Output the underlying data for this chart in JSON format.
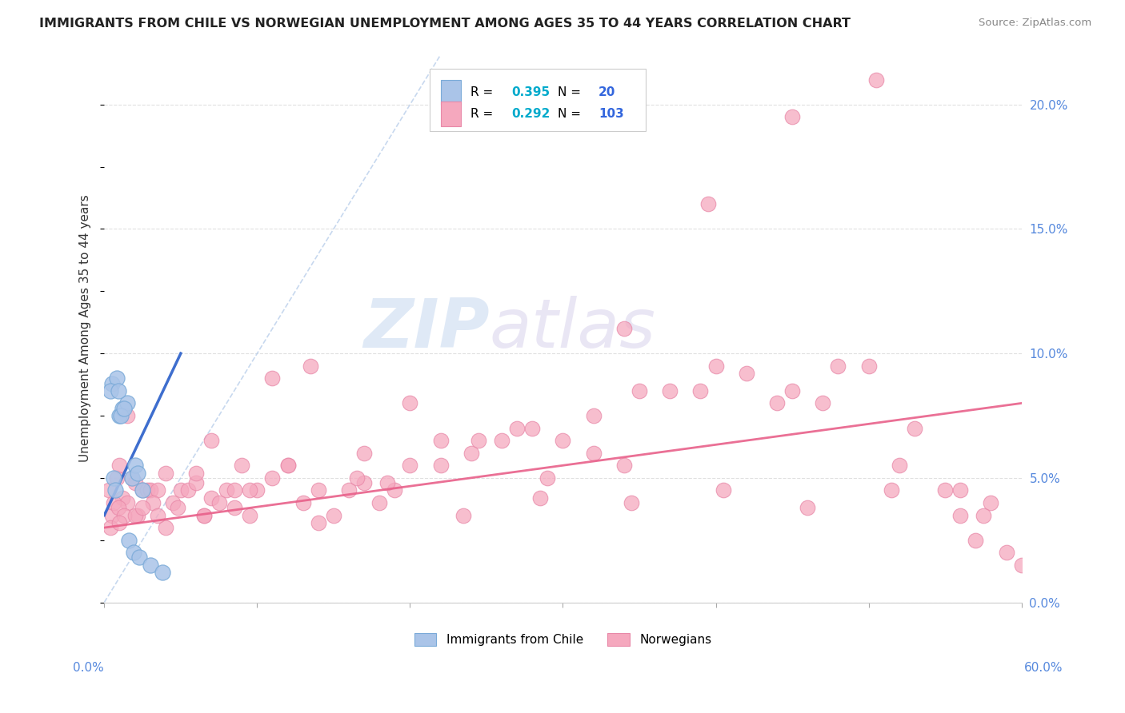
{
  "title": "IMMIGRANTS FROM CHILE VS NORWEGIAN UNEMPLOYMENT AMONG AGES 35 TO 44 YEARS CORRELATION CHART",
  "source": "Source: ZipAtlas.com",
  "ylabel": "Unemployment Among Ages 35 to 44 years",
  "right_yticks": [
    "0.0%",
    "5.0%",
    "10.0%",
    "15.0%",
    "20.0%"
  ],
  "right_yvalues": [
    0.0,
    5.0,
    10.0,
    15.0,
    20.0
  ],
  "xlim": [
    0.0,
    60.0
  ],
  "ylim": [
    0.0,
    22.0
  ],
  "legend_chile_r": "0.395",
  "legend_chile_n": "20",
  "legend_norw_r": "0.292",
  "legend_norw_n": "103",
  "watermark_zip": "ZIP",
  "watermark_atlas": "atlas",
  "chile_color": "#aac4e8",
  "chile_edge": "#7aaad8",
  "norw_color": "#f5a8be",
  "norw_edge": "#e888a8",
  "chile_line_color": "#3366cc",
  "norw_line_color": "#e8608a",
  "diag_line_color": "#b0c8e8",
  "grid_color": "#e0e0e0",
  "title_color": "#222222",
  "source_color": "#888888",
  "ylabel_color": "#333333",
  "axis_label_color": "#5588dd",
  "legend_r_color": "#00aacc",
  "legend_n_color": "#3366dd",
  "chile_x": [
    0.5,
    0.8,
    1.0,
    1.2,
    1.5,
    1.8,
    2.0,
    2.2,
    2.5,
    0.4,
    0.6,
    0.7,
    0.9,
    1.1,
    1.3,
    1.6,
    1.9,
    2.3,
    3.0,
    3.8
  ],
  "chile_y": [
    8.8,
    9.0,
    7.5,
    7.8,
    8.0,
    5.0,
    5.5,
    5.2,
    4.5,
    8.5,
    5.0,
    4.5,
    8.5,
    7.5,
    7.8,
    2.5,
    2.0,
    1.8,
    1.5,
    1.2
  ],
  "norw_x": [
    0.5,
    0.8,
    1.0,
    1.2,
    1.5,
    1.8,
    2.0,
    2.2,
    2.5,
    2.8,
    3.0,
    3.5,
    4.0,
    4.5,
    5.0,
    5.5,
    6.0,
    6.5,
    7.0,
    7.5,
    8.0,
    8.5,
    9.0,
    9.5,
    10.0,
    11.0,
    12.0,
    13.0,
    14.0,
    15.0,
    16.0,
    17.0,
    18.0,
    19.0,
    20.0,
    22.0,
    24.0,
    26.0,
    28.0,
    30.0,
    32.0,
    34.0,
    35.0,
    37.0,
    39.0,
    40.0,
    42.0,
    44.0,
    45.0,
    47.0,
    48.0,
    50.0,
    52.0,
    53.0,
    55.0,
    56.0,
    57.0,
    58.0,
    59.0,
    60.0,
    0.3,
    0.6,
    0.9,
    1.3,
    2.0,
    3.2,
    4.8,
    6.5,
    8.5,
    11.0,
    13.5,
    16.5,
    20.0,
    24.5,
    29.0,
    34.0,
    39.5,
    45.0,
    50.5,
    56.0,
    0.4,
    1.0,
    2.5,
    4.0,
    6.0,
    9.5,
    14.0,
    18.5,
    23.5,
    28.5,
    34.5,
    40.5,
    46.0,
    51.5,
    57.5,
    1.5,
    3.5,
    7.0,
    12.0,
    17.0,
    22.0,
    27.0,
    32.0
  ],
  "norw_y": [
    3.5,
    5.0,
    5.5,
    4.2,
    4.0,
    5.0,
    4.8,
    3.5,
    4.5,
    4.5,
    4.5,
    4.5,
    5.2,
    4.0,
    4.5,
    4.5,
    4.8,
    3.5,
    4.2,
    4.0,
    4.5,
    3.8,
    5.5,
    3.5,
    4.5,
    5.0,
    5.5,
    4.0,
    3.2,
    3.5,
    4.5,
    4.8,
    4.0,
    4.5,
    5.5,
    6.5,
    6.0,
    6.5,
    7.0,
    6.5,
    7.5,
    5.5,
    8.5,
    8.5,
    8.5,
    9.5,
    9.2,
    8.0,
    8.5,
    8.0,
    9.5,
    9.5,
    5.5,
    7.0,
    4.5,
    3.5,
    2.5,
    4.0,
    2.0,
    1.5,
    4.5,
    4.0,
    3.8,
    3.5,
    3.5,
    4.0,
    3.8,
    3.5,
    4.5,
    9.0,
    9.5,
    5.0,
    8.0,
    6.5,
    5.0,
    11.0,
    16.0,
    19.5,
    21.0,
    4.5,
    3.0,
    3.2,
    3.8,
    3.0,
    5.2,
    4.5,
    4.5,
    4.8,
    3.5,
    4.2,
    4.0,
    4.5,
    3.8,
    4.5,
    3.5,
    7.5,
    3.5,
    6.5,
    5.5,
    6.0,
    5.5,
    7.0,
    6.0
  ],
  "chile_line_x": [
    0.0,
    5.0
  ],
  "chile_line_y": [
    3.5,
    10.0
  ],
  "norw_line_x": [
    0.0,
    60.0
  ],
  "norw_line_y": [
    3.0,
    8.0
  ],
  "diag_line_x": [
    0.0,
    22.0
  ],
  "diag_line_y": [
    0.0,
    22.0
  ]
}
